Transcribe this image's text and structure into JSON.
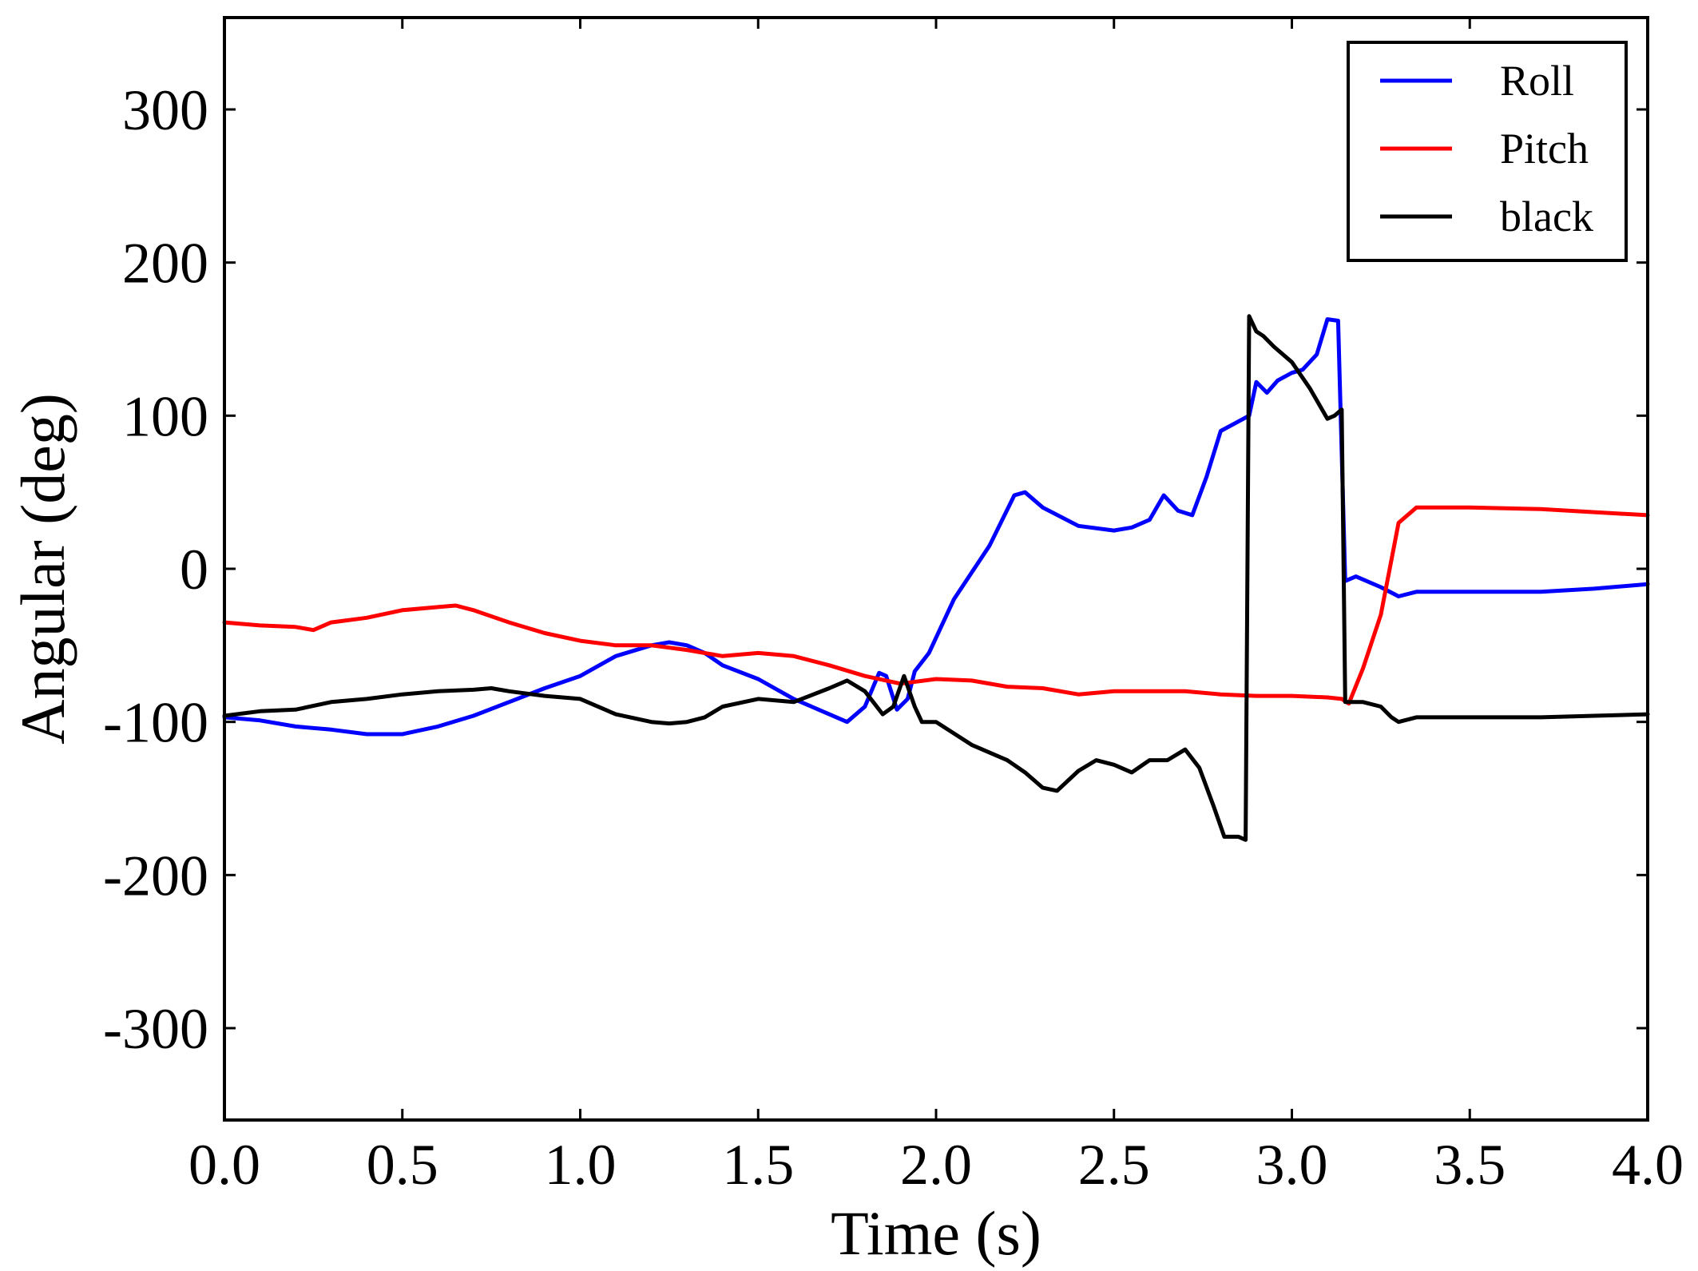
{
  "chart_data": {
    "type": "line",
    "title": "",
    "xlabel": "Time (s)",
    "ylabel": "Angular (deg)",
    "xlim": [
      0.0,
      4.0
    ],
    "ylim": [
      -360,
      360
    ],
    "xticks": [
      0.0,
      0.5,
      1.0,
      1.5,
      2.0,
      2.5,
      3.0,
      3.5,
      4.0
    ],
    "xtick_labels": [
      "0.0",
      "0.5",
      "1.0",
      "1.5",
      "2.0",
      "2.5",
      "3.0",
      "3.5",
      "4.0"
    ],
    "yticks": [
      -300,
      -200,
      -100,
      0,
      100,
      200,
      300
    ],
    "ytick_labels": [
      "-300",
      "-200",
      "-100",
      "0",
      "100",
      "200",
      "300"
    ],
    "grid": false,
    "legend_position": "top-right",
    "series": [
      {
        "name": "Roll",
        "color": "#0000ff",
        "x": [
          0.0,
          0.1,
          0.2,
          0.3,
          0.4,
          0.5,
          0.6,
          0.7,
          0.8,
          0.9,
          1.0,
          1.1,
          1.2,
          1.25,
          1.3,
          1.35,
          1.4,
          1.5,
          1.6,
          1.65,
          1.7,
          1.75,
          1.8,
          1.84,
          1.86,
          1.89,
          1.92,
          1.94,
          1.98,
          2.05,
          2.15,
          2.22,
          2.25,
          2.3,
          2.4,
          2.5,
          2.55,
          2.6,
          2.64,
          2.68,
          2.72,
          2.76,
          2.8,
          2.84,
          2.88,
          2.9,
          2.93,
          2.96,
          3.0,
          3.03,
          3.07,
          3.1,
          3.13,
          3.15,
          3.18,
          3.25,
          3.3,
          3.35,
          3.5,
          3.7,
          3.85,
          4.0
        ],
        "y": [
          -97,
          -99,
          -103,
          -105,
          -108,
          -108,
          -103,
          -96,
          -87,
          -78,
          -70,
          -57,
          -50,
          -48,
          -50,
          -55,
          -63,
          -72,
          -85,
          -90,
          -95,
          -100,
          -90,
          -68,
          -70,
          -92,
          -85,
          -67,
          -55,
          -20,
          15,
          48,
          50,
          40,
          28,
          25,
          27,
          32,
          48,
          38,
          35,
          60,
          90,
          95,
          100,
          122,
          115,
          123,
          128,
          130,
          140,
          163,
          162,
          -8,
          -5,
          -12,
          -18,
          -15,
          -15,
          -15,
          -13,
          -10
        ]
      },
      {
        "name": "Pitch",
        "color": "#ff0000",
        "x": [
          0.0,
          0.1,
          0.2,
          0.25,
          0.3,
          0.4,
          0.5,
          0.6,
          0.65,
          0.7,
          0.8,
          0.9,
          1.0,
          1.1,
          1.2,
          1.3,
          1.4,
          1.5,
          1.6,
          1.7,
          1.8,
          1.9,
          2.0,
          2.1,
          2.2,
          2.3,
          2.4,
          2.5,
          2.6,
          2.7,
          2.8,
          2.9,
          3.0,
          3.1,
          3.14,
          3.16,
          3.2,
          3.25,
          3.3,
          3.35,
          3.5,
          3.7,
          3.85,
          4.0
        ],
        "y": [
          -35,
          -37,
          -38,
          -40,
          -35,
          -32,
          -27,
          -25,
          -24,
          -27,
          -35,
          -42,
          -47,
          -50,
          -50,
          -53,
          -57,
          -55,
          -57,
          -63,
          -70,
          -75,
          -72,
          -73,
          -77,
          -78,
          -82,
          -80,
          -80,
          -80,
          -82,
          -83,
          -83,
          -84,
          -85,
          -88,
          -65,
          -30,
          30,
          40,
          40,
          39,
          37,
          35
        ]
      },
      {
        "name": "black",
        "color": "#000000",
        "x": [
          0.0,
          0.1,
          0.2,
          0.3,
          0.4,
          0.5,
          0.6,
          0.7,
          0.75,
          0.8,
          0.9,
          1.0,
          1.1,
          1.2,
          1.25,
          1.3,
          1.35,
          1.4,
          1.5,
          1.6,
          1.7,
          1.75,
          1.8,
          1.85,
          1.88,
          1.91,
          1.94,
          1.96,
          2.0,
          2.1,
          2.2,
          2.25,
          2.3,
          2.34,
          2.4,
          2.45,
          2.5,
          2.55,
          2.6,
          2.65,
          2.7,
          2.74,
          2.78,
          2.81,
          2.85,
          2.87,
          2.88,
          2.9,
          2.92,
          2.95,
          3.0,
          3.05,
          3.1,
          3.12,
          3.14,
          3.15,
          3.2,
          3.25,
          3.28,
          3.3,
          3.35,
          3.5,
          3.7,
          3.85,
          4.0
        ],
        "y": [
          -96,
          -93,
          -92,
          -87,
          -85,
          -82,
          -80,
          -79,
          -78,
          -80,
          -83,
          -85,
          -95,
          -100,
          -101,
          -100,
          -97,
          -90,
          -85,
          -87,
          -78,
          -73,
          -80,
          -95,
          -90,
          -70,
          -90,
          -100,
          -100,
          -115,
          -125,
          -133,
          -143,
          -145,
          -132,
          -125,
          -128,
          -133,
          -125,
          -125,
          -118,
          -130,
          -155,
          -175,
          -175,
          -177,
          165,
          155,
          152,
          145,
          135,
          118,
          98,
          100,
          104,
          -87,
          -87,
          -90,
          -97,
          -100,
          -97,
          -97,
          -97,
          -96,
          -95
        ]
      }
    ]
  }
}
